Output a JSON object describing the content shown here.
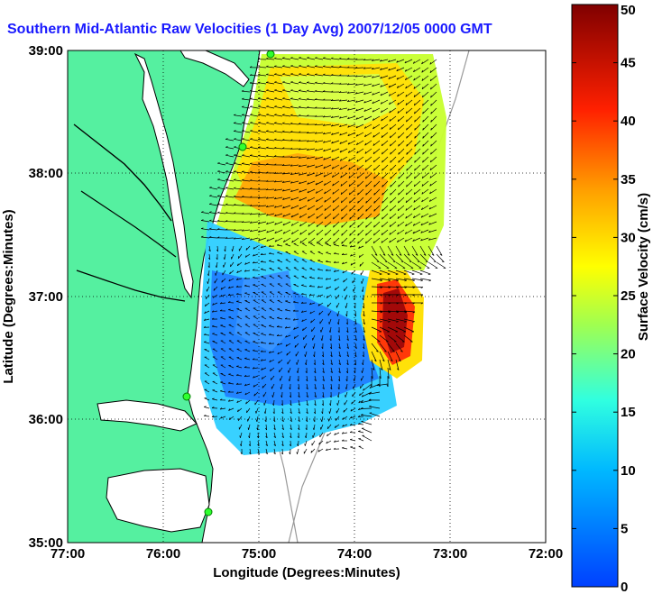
{
  "title": "Southern Mid-Atlantic Raw Velocities (1 Day Avg) 2007/12/05 0000 GMT",
  "map": {
    "xlabel": "Longitude (Degrees:Minutes)",
    "ylabel": "Latitude (Degrees:Minutes)",
    "lon_ticks": [
      "77:00",
      "76:00",
      "75:00",
      "74:00",
      "73:00",
      "72:00"
    ],
    "lat_ticks": [
      "39:00",
      "38:00",
      "37:00",
      "36:00",
      "35:00"
    ],
    "land_color": "#55f0a0",
    "water_color": "#ffffff"
  },
  "colorbar": {
    "label": "Surface Velocity (cm/s)",
    "ticks": [
      "50",
      "45",
      "40",
      "35",
      "30",
      "25",
      "20",
      "15",
      "10",
      "5",
      "0"
    ],
    "min": 0,
    "max": 50,
    "colors": [
      "#0040ff",
      "#00c0ff",
      "#40ffd0",
      "#c0ff40",
      "#ffe000",
      "#ff8000",
      "#ff1000",
      "#800000"
    ]
  }
}
